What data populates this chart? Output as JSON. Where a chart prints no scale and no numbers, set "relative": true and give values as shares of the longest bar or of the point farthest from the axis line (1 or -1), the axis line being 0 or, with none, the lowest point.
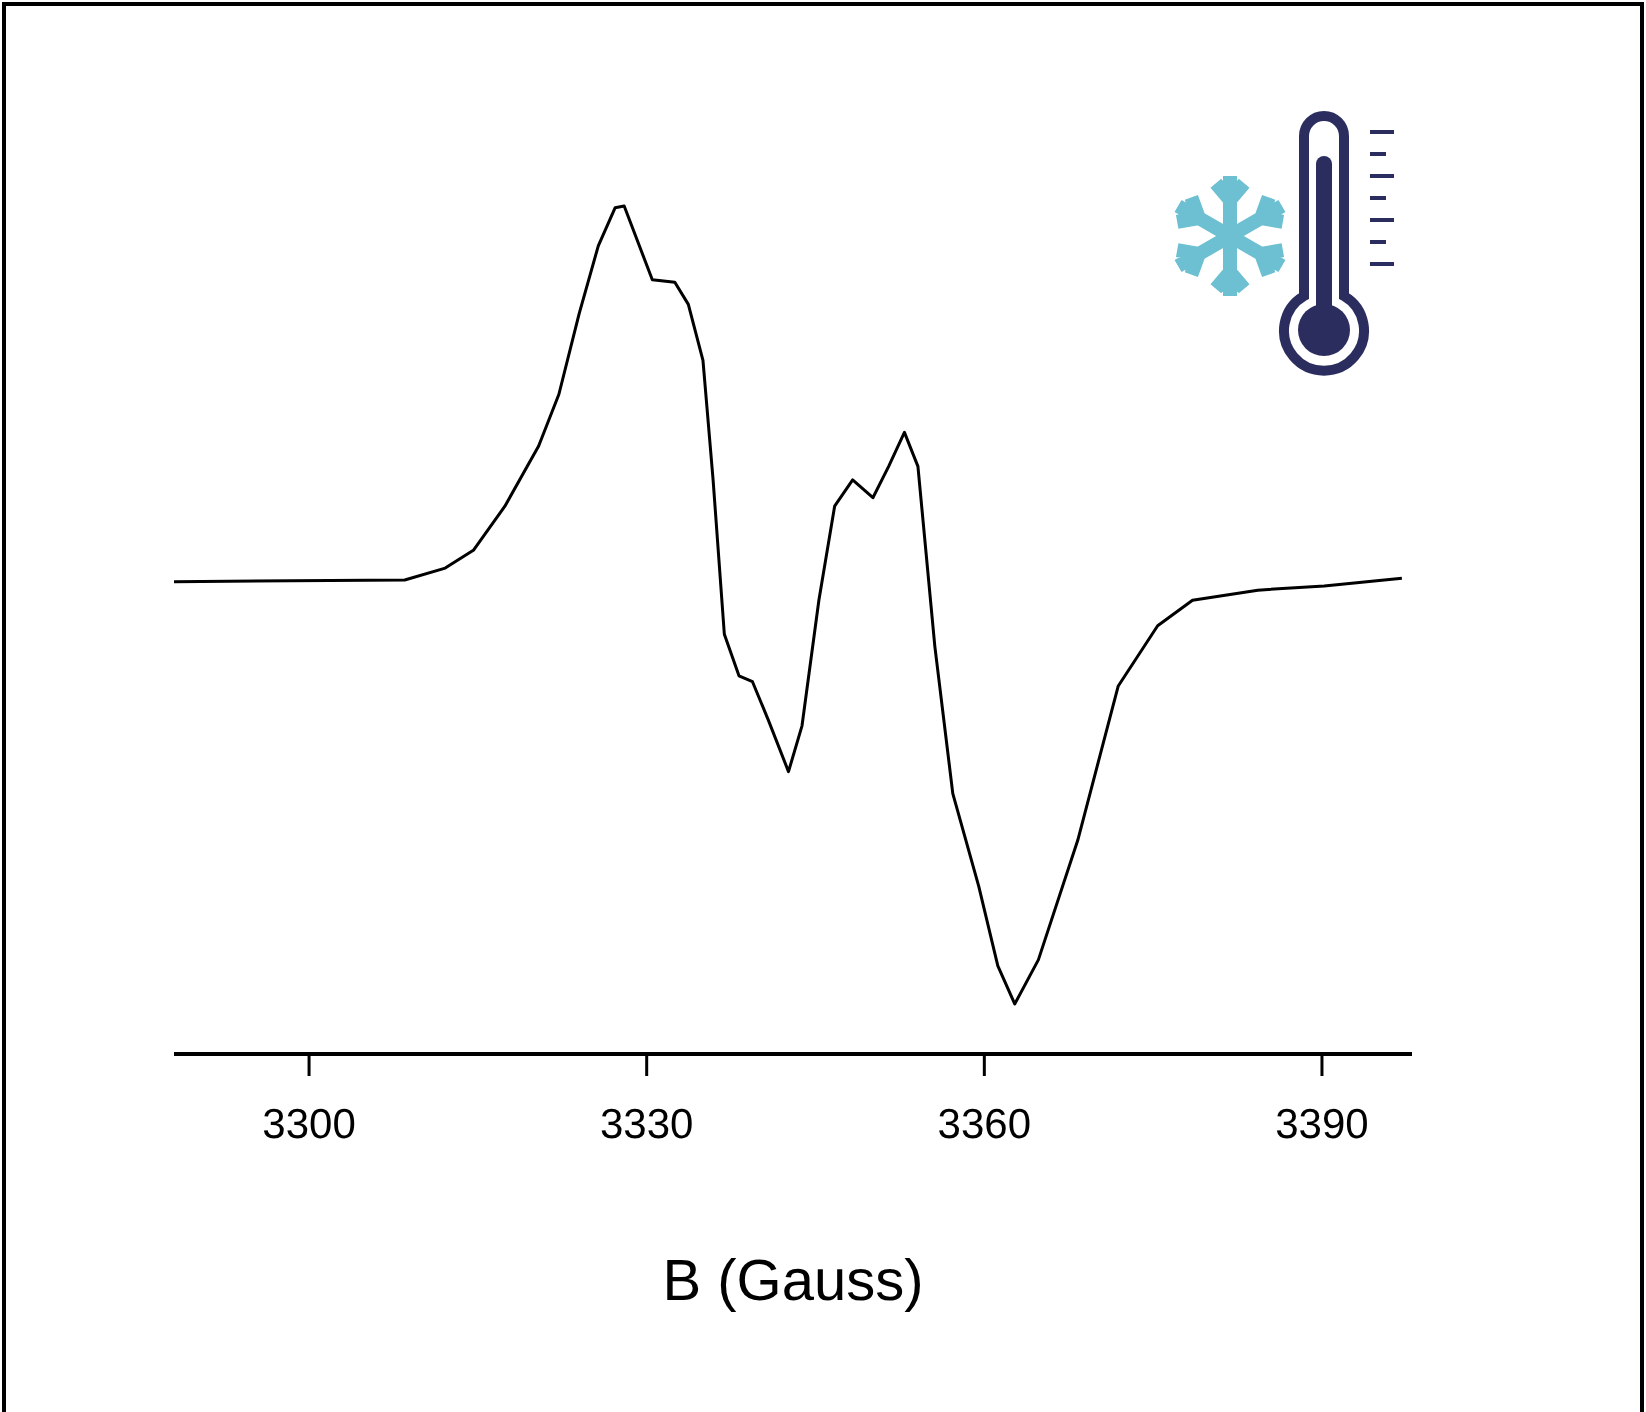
{
  "chart_data": {
    "type": "line",
    "xlabel": "B (Gauss)",
    "relative": true,
    "xlim": [
      3288,
      3398
    ],
    "xticks": [
      3300,
      3330,
      3360,
      3390
    ],
    "grid": false,
    "marker": "none",
    "line_style": "solid",
    "series": [
      {
        "color": "#000000",
        "x": [
          3288,
          3308.5,
          3312.1,
          3314.6,
          3317.4,
          3320.4,
          3322.2,
          3324.0,
          3325.7,
          3327.2,
          3328.0,
          3330.5,
          3332.5,
          3333.7,
          3335.0,
          3335.9,
          3336.9,
          3338.2,
          3339.4,
          3340.8,
          3342.6,
          3343.8,
          3345.3,
          3346.7,
          3348.3,
          3350.1,
          3351.5,
          3352.9,
          3354.1,
          3355.6,
          3357.2,
          3359.5,
          3361.2,
          3362.7,
          3364.8,
          3368.3,
          3371.9,
          3375.4,
          3378.5,
          3384.3,
          3390.2,
          3397.1
        ],
        "values": [
          0.557,
          0.559,
          0.573,
          0.594,
          0.646,
          0.717,
          0.778,
          0.873,
          0.953,
          0.998,
          1.0,
          0.913,
          0.91,
          0.884,
          0.818,
          0.677,
          0.495,
          0.446,
          0.439,
          0.394,
          0.333,
          0.387,
          0.535,
          0.646,
          0.677,
          0.656,
          0.693,
          0.733,
          0.693,
          0.481,
          0.307,
          0.198,
          0.104,
          0.059,
          0.111,
          0.252,
          0.434,
          0.505,
          0.535,
          0.547,
          0.552,
          0.561
        ]
      }
    ]
  }
}
